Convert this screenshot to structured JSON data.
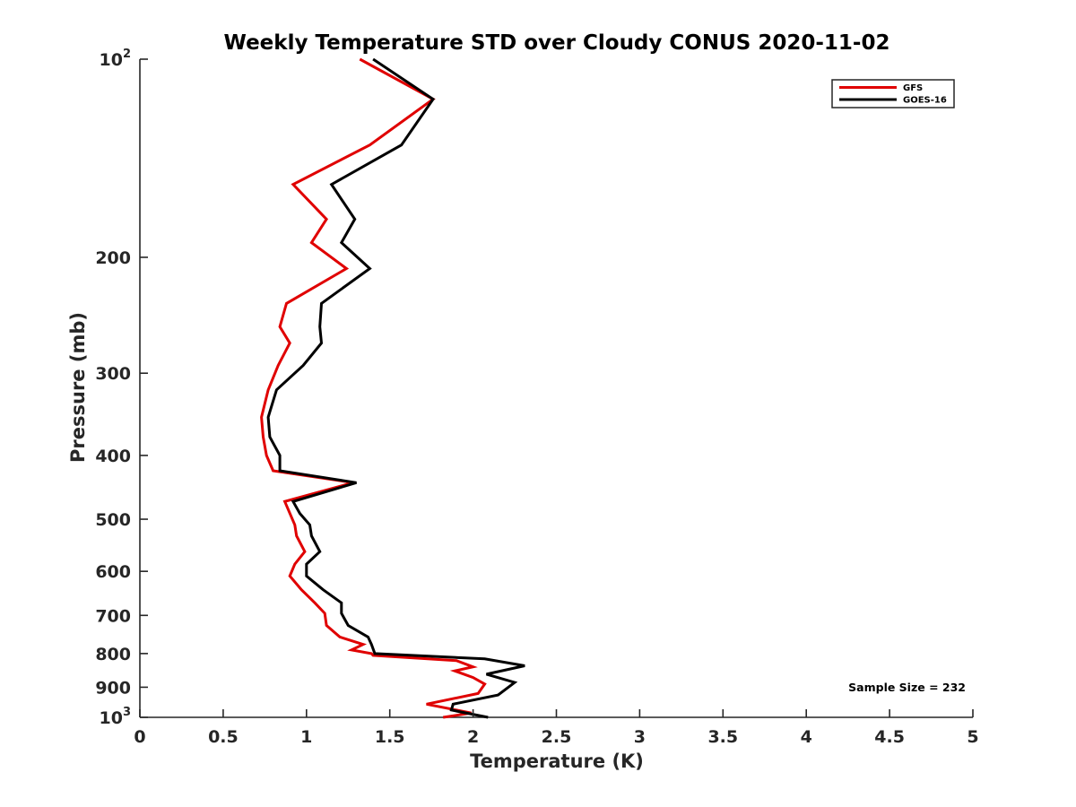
{
  "chart_data": {
    "type": "line",
    "title": "Weekly Temperature STD over Cloudy CONUS 2020-11-02",
    "xlabel": "Temperature (K)",
    "ylabel": "Pressure (mb)",
    "xlim": [
      0,
      5
    ],
    "ylim": [
      100,
      1000
    ],
    "y_scale": "log",
    "y_reversed": true,
    "grid": false,
    "legend_position": "top-right",
    "x_ticks": [
      0,
      0.5,
      1,
      1.5,
      2,
      2.5,
      3,
      3.5,
      4,
      4.5,
      5
    ],
    "x_tick_labels": [
      "0",
      "0.5",
      "1",
      "1.5",
      "2",
      "2.5",
      "3",
      "3.5",
      "4",
      "4.5",
      "5"
    ],
    "y_ticks": [
      100,
      200,
      300,
      400,
      500,
      600,
      700,
      800,
      900,
      1000
    ],
    "y_tick_labels": [
      {
        "base": "10",
        "exp": "2"
      },
      {
        "base": "200"
      },
      {
        "base": "300"
      },
      {
        "base": "400"
      },
      {
        "base": "500"
      },
      {
        "base": "600"
      },
      {
        "base": "700"
      },
      {
        "base": "800"
      },
      {
        "base": "900"
      },
      {
        "base": "10",
        "exp": "3"
      }
    ],
    "series": [
      {
        "name": "GFS",
        "color": "#e00000",
        "points": [
          [
            1.32,
            100
          ],
          [
            1.76,
            115
          ],
          [
            1.38,
            135
          ],
          [
            0.92,
            155
          ],
          [
            1.12,
            175
          ],
          [
            1.03,
            190
          ],
          [
            1.24,
            208
          ],
          [
            0.88,
            235
          ],
          [
            0.84,
            255
          ],
          [
            0.9,
            270
          ],
          [
            0.83,
            292
          ],
          [
            0.77,
            318
          ],
          [
            0.73,
            350
          ],
          [
            0.74,
            375
          ],
          [
            0.76,
            400
          ],
          [
            0.8,
            422
          ],
          [
            1.28,
            440
          ],
          [
            0.87,
            470
          ],
          [
            0.93,
            510
          ],
          [
            0.94,
            530
          ],
          [
            0.99,
            560
          ],
          [
            0.93,
            585
          ],
          [
            0.9,
            610
          ],
          [
            0.97,
            640
          ],
          [
            1.05,
            670
          ],
          [
            1.11,
            695
          ],
          [
            1.12,
            725
          ],
          [
            1.2,
            755
          ],
          [
            1.34,
            775
          ],
          [
            1.27,
            790
          ],
          [
            1.39,
            800
          ],
          [
            1.4,
            805
          ],
          [
            1.9,
            820
          ],
          [
            2.0,
            838
          ],
          [
            1.89,
            850
          ],
          [
            2.0,
            870
          ],
          [
            2.07,
            890
          ],
          [
            2.03,
            920
          ],
          [
            1.72,
            955
          ],
          [
            1.99,
            985
          ],
          [
            1.82,
            1000
          ]
        ]
      },
      {
        "name": "GOES-16",
        "color": "#000000",
        "points": [
          [
            1.4,
            100
          ],
          [
            1.76,
            115
          ],
          [
            1.57,
            135
          ],
          [
            1.15,
            155
          ],
          [
            1.29,
            175
          ],
          [
            1.21,
            190
          ],
          [
            1.38,
            208
          ],
          [
            1.09,
            235
          ],
          [
            1.08,
            255
          ],
          [
            1.09,
            270
          ],
          [
            0.98,
            292
          ],
          [
            0.82,
            318
          ],
          [
            0.77,
            350
          ],
          [
            0.78,
            375
          ],
          [
            0.84,
            400
          ],
          [
            0.84,
            422
          ],
          [
            1.3,
            440
          ],
          [
            0.92,
            470
          ],
          [
            0.96,
            490
          ],
          [
            1.02,
            510
          ],
          [
            1.03,
            530
          ],
          [
            1.08,
            560
          ],
          [
            1.0,
            585
          ],
          [
            1.0,
            610
          ],
          [
            1.1,
            640
          ],
          [
            1.21,
            670
          ],
          [
            1.21,
            695
          ],
          [
            1.25,
            725
          ],
          [
            1.37,
            755
          ],
          [
            1.39,
            775
          ],
          [
            1.41,
            800
          ],
          [
            2.07,
            815
          ],
          [
            2.31,
            835
          ],
          [
            2.08,
            860
          ],
          [
            2.25,
            885
          ],
          [
            2.15,
            925
          ],
          [
            1.88,
            955
          ],
          [
            1.87,
            975
          ],
          [
            2.09,
            1000
          ]
        ]
      }
    ],
    "annotation": "Sample Size = 232"
  }
}
